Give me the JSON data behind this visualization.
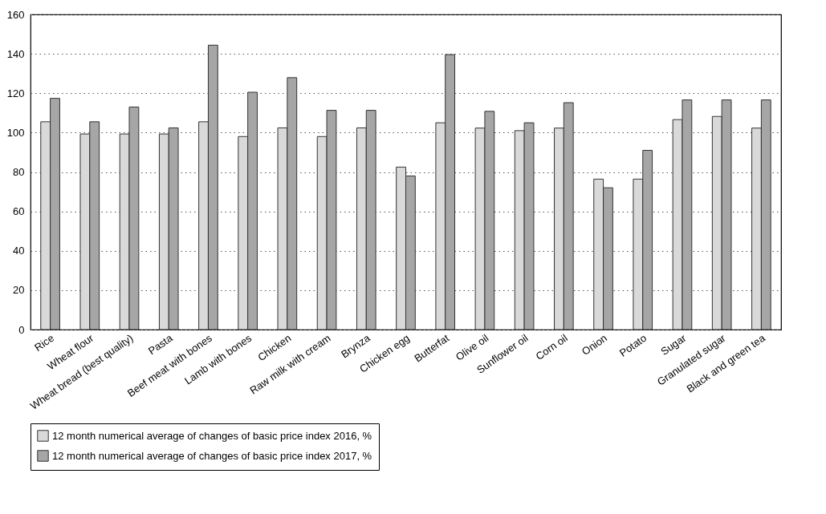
{
  "chart_data": {
    "type": "bar",
    "categories": [
      "Rice",
      "Wheat flour",
      "Wheat bread (best quality)",
      "Pasta",
      "Beef meat with bones",
      "Lamb with bones",
      "Chicken",
      "Raw milk with cream",
      "Brynza",
      "Chicken egg",
      "Butterfat",
      "Olive oil",
      "Sunflower oil",
      "Corn oil",
      "Onion",
      "Potato",
      "Sugar",
      "Granulated sugar",
      "Black and green tea"
    ],
    "series": [
      {
        "name": "12 month numerical average of changes of basic price index 2016, %",
        "color": "#d9d9d9",
        "values": [
          105.5,
          99.3,
          99.3,
          99.3,
          105.5,
          98,
          102.4,
          98,
          102.4,
          82.5,
          105,
          102.3,
          101,
          102.3,
          76.4,
          76.4,
          106.6,
          108.2,
          102.3
        ]
      },
      {
        "name": "12 month numerical average of changes of basic price index 2017, %",
        "color": "#a6a6a6",
        "values": [
          117.4,
          105.5,
          113,
          102.4,
          144.4,
          120.5,
          127.9,
          111.3,
          111.3,
          78,
          139.6,
          110.8,
          105,
          115.2,
          72,
          91,
          116.6,
          116.6,
          116.6
        ]
      }
    ],
    "ylim": [
      0,
      160
    ],
    "yticks": [
      0,
      20,
      40,
      60,
      80,
      100,
      120,
      140,
      160
    ],
    "grid": "y",
    "legend": "bottom"
  }
}
